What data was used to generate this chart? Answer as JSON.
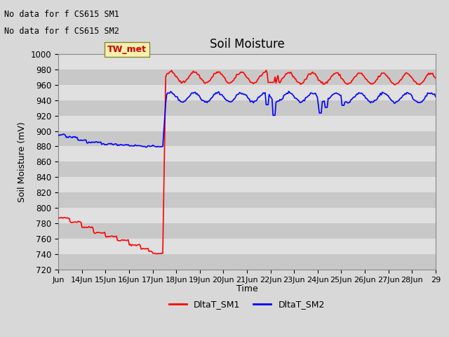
{
  "title": "Soil Moisture",
  "ylabel": "Soil Moisture (mV)",
  "xlabel": "Time",
  "ylim": [
    720,
    1000
  ],
  "yticks": [
    720,
    740,
    760,
    780,
    800,
    820,
    840,
    860,
    880,
    900,
    920,
    940,
    960,
    980,
    1000
  ],
  "background_color": "#d8d8d8",
  "plot_bg_color": "#d8d8d8",
  "text_annotations": [
    "No data for f CS615 SM1",
    "No data for f CS615 SM2"
  ],
  "legend_box_label": "TW_met",
  "legend_entries": [
    "DltaT_SM1",
    "DltaT_SM2"
  ],
  "legend_colors": [
    "#ff0000",
    "#0000ff"
  ],
  "sm1_color": "#ff0000",
  "sm2_color": "#0000ff",
  "xtick_labels": [
    "Jun",
    "14Jun",
    "15Jun",
    "16Jun",
    "17Jun",
    "18Jun",
    "19Jun",
    "20Jun",
    "21Jun",
    "22Jun",
    "23Jun",
    "24Jun",
    "25Jun",
    "26Jun",
    "27Jun",
    "28Jun",
    "29"
  ],
  "grid_colors": [
    "#c8c8c8",
    "#e0e0e0"
  ]
}
